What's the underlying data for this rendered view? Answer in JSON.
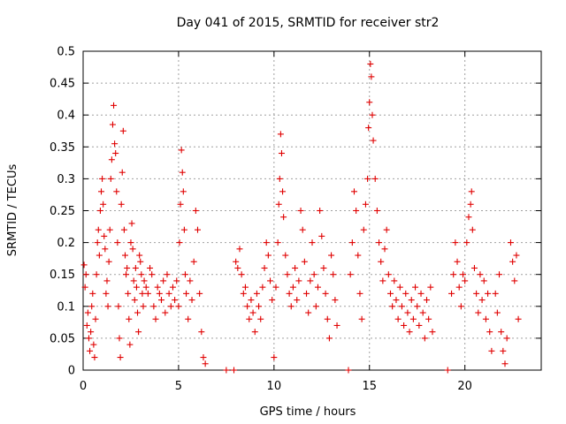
{
  "chart_data": {
    "type": "scatter",
    "title": "Day 041 of 2015, SRMTID for receiver str2",
    "xlabel": "GPS time / hours",
    "ylabel": "SRMTID / TECUs",
    "xlim": [
      0,
      24
    ],
    "ylim": [
      0,
      0.5
    ],
    "xticks": [
      0,
      5,
      10,
      15,
      20
    ],
    "xtick_labels": [
      "0",
      "5",
      "10",
      "15",
      "20"
    ],
    "yticks": [
      0,
      0.05,
      0.1,
      0.15,
      0.2,
      0.25,
      0.3,
      0.35,
      0.4,
      0.45,
      0.5
    ],
    "ytick_labels": [
      "0",
      "0.05",
      "0.1",
      "0.15",
      "0.2",
      "0.25",
      "0.3",
      "0.35",
      "0.4",
      "0.45",
      "0.5"
    ],
    "grid": true,
    "legend": "none",
    "marker": "+",
    "color": "#e00000",
    "series": [
      {
        "values_note": "",
        "points": [
          [
            0.05,
            0.165
          ],
          [
            0.1,
            0.13
          ],
          [
            0.15,
            0.15
          ],
          [
            0.2,
            0.07
          ],
          [
            0.25,
            0.09
          ],
          [
            0.3,
            0.05
          ],
          [
            0.35,
            0.03
          ],
          [
            0.4,
            0.06
          ],
          [
            0.45,
            0.1
          ],
          [
            0.5,
            0.12
          ],
          [
            0.55,
            0.04
          ],
          [
            0.6,
            0.02
          ],
          [
            0.65,
            0.08
          ],
          [
            0.7,
            0.15
          ],
          [
            0.75,
            0.2
          ],
          [
            0.8,
            0.22
          ],
          [
            0.85,
            0.18
          ],
          [
            0.9,
            0.25
          ],
          [
            0.95,
            0.28
          ],
          [
            1.0,
            0.3
          ],
          [
            1.05,
            0.26
          ],
          [
            1.1,
            0.21
          ],
          [
            1.15,
            0.19
          ],
          [
            1.2,
            0.12
          ],
          [
            1.25,
            0.14
          ],
          [
            1.3,
            0.1
          ],
          [
            1.35,
            0.17
          ],
          [
            1.4,
            0.22
          ],
          [
            1.45,
            0.3
          ],
          [
            1.5,
            0.33
          ],
          [
            1.55,
            0.385
          ],
          [
            1.6,
            0.415
          ],
          [
            1.65,
            0.355
          ],
          [
            1.7,
            0.34
          ],
          [
            1.75,
            0.28
          ],
          [
            1.8,
            0.2
          ],
          [
            1.85,
            0.1
          ],
          [
            1.9,
            0.05
          ],
          [
            1.95,
            0.02
          ],
          [
            2.0,
            0.26
          ],
          [
            2.05,
            0.31
          ],
          [
            2.1,
            0.375
          ],
          [
            2.15,
            0.22
          ],
          [
            2.2,
            0.18
          ],
          [
            2.25,
            0.15
          ],
          [
            2.3,
            0.16
          ],
          [
            2.35,
            0.12
          ],
          [
            2.4,
            0.08
          ],
          [
            2.45,
            0.04
          ],
          [
            2.5,
            0.2
          ],
          [
            2.55,
            0.23
          ],
          [
            2.6,
            0.19
          ],
          [
            2.65,
            0.14
          ],
          [
            2.7,
            0.11
          ],
          [
            2.75,
            0.16
          ],
          [
            2.8,
            0.13
          ],
          [
            2.85,
            0.09
          ],
          [
            2.9,
            0.06
          ],
          [
            2.95,
            0.18
          ],
          [
            3.0,
            0.17
          ],
          [
            3.05,
            0.15
          ],
          [
            3.1,
            0.12
          ],
          [
            3.15,
            0.1
          ],
          [
            3.2,
            0.14
          ],
          [
            3.3,
            0.13
          ],
          [
            3.4,
            0.12
          ],
          [
            3.5,
            0.16
          ],
          [
            3.6,
            0.15
          ],
          [
            3.7,
            0.1
          ],
          [
            3.8,
            0.08
          ],
          [
            3.9,
            0.13
          ],
          [
            4.0,
            0.12
          ],
          [
            4.1,
            0.11
          ],
          [
            4.2,
            0.14
          ],
          [
            4.3,
            0.09
          ],
          [
            4.4,
            0.15
          ],
          [
            4.5,
            0.12
          ],
          [
            4.6,
            0.1
          ],
          [
            4.7,
            0.13
          ],
          [
            4.8,
            0.11
          ],
          [
            4.9,
            0.14
          ],
          [
            5.0,
            0.1
          ],
          [
            5.05,
            0.2
          ],
          [
            5.1,
            0.26
          ],
          [
            5.15,
            0.345
          ],
          [
            5.2,
            0.31
          ],
          [
            5.25,
            0.28
          ],
          [
            5.3,
            0.22
          ],
          [
            5.35,
            0.15
          ],
          [
            5.4,
            0.12
          ],
          [
            5.5,
            0.08
          ],
          [
            5.6,
            0.14
          ],
          [
            5.7,
            0.11
          ],
          [
            5.8,
            0.17
          ],
          [
            5.9,
            0.25
          ],
          [
            6.0,
            0.22
          ],
          [
            6.1,
            0.12
          ],
          [
            6.2,
            0.06
          ],
          [
            6.3,
            0.02
          ],
          [
            6.4,
            0.01
          ],
          [
            7.5,
            0.0
          ],
          [
            7.9,
            0.0
          ],
          [
            8.0,
            0.17
          ],
          [
            8.1,
            0.16
          ],
          [
            8.2,
            0.19
          ],
          [
            8.3,
            0.15
          ],
          [
            8.4,
            0.12
          ],
          [
            8.5,
            0.13
          ],
          [
            8.6,
            0.1
          ],
          [
            8.7,
            0.08
          ],
          [
            8.8,
            0.11
          ],
          [
            8.9,
            0.09
          ],
          [
            9.0,
            0.06
          ],
          [
            9.1,
            0.12
          ],
          [
            9.2,
            0.1
          ],
          [
            9.3,
            0.08
          ],
          [
            9.4,
            0.13
          ],
          [
            9.5,
            0.16
          ],
          [
            9.6,
            0.2
          ],
          [
            9.7,
            0.18
          ],
          [
            9.8,
            0.14
          ],
          [
            9.9,
            0.11
          ],
          [
            10.0,
            0.02
          ],
          [
            10.1,
            0.13
          ],
          [
            10.2,
            0.2
          ],
          [
            10.25,
            0.26
          ],
          [
            10.3,
            0.3
          ],
          [
            10.35,
            0.37
          ],
          [
            10.4,
            0.34
          ],
          [
            10.45,
            0.28
          ],
          [
            10.5,
            0.24
          ],
          [
            10.6,
            0.18
          ],
          [
            10.7,
            0.15
          ],
          [
            10.8,
            0.12
          ],
          [
            10.9,
            0.1
          ],
          [
            11.0,
            0.13
          ],
          [
            11.1,
            0.16
          ],
          [
            11.2,
            0.11
          ],
          [
            11.3,
            0.14
          ],
          [
            11.4,
            0.25
          ],
          [
            11.5,
            0.22
          ],
          [
            11.6,
            0.17
          ],
          [
            11.7,
            0.12
          ],
          [
            11.8,
            0.09
          ],
          [
            11.9,
            0.14
          ],
          [
            12.0,
            0.2
          ],
          [
            12.1,
            0.15
          ],
          [
            12.2,
            0.1
          ],
          [
            12.3,
            0.13
          ],
          [
            12.4,
            0.25
          ],
          [
            12.5,
            0.21
          ],
          [
            12.6,
            0.16
          ],
          [
            12.7,
            0.12
          ],
          [
            12.8,
            0.08
          ],
          [
            12.9,
            0.05
          ],
          [
            13.0,
            0.18
          ],
          [
            13.1,
            0.15
          ],
          [
            13.2,
            0.11
          ],
          [
            13.3,
            0.07
          ],
          [
            13.9,
            0.0
          ],
          [
            14.0,
            0.15
          ],
          [
            14.1,
            0.2
          ],
          [
            14.2,
            0.28
          ],
          [
            14.3,
            0.25
          ],
          [
            14.4,
            0.18
          ],
          [
            14.5,
            0.12
          ],
          [
            14.6,
            0.08
          ],
          [
            14.7,
            0.22
          ],
          [
            14.8,
            0.26
          ],
          [
            14.9,
            0.3
          ],
          [
            14.95,
            0.38
          ],
          [
            15.0,
            0.42
          ],
          [
            15.05,
            0.48
          ],
          [
            15.1,
            0.46
          ],
          [
            15.15,
            0.4
          ],
          [
            15.2,
            0.36
          ],
          [
            15.3,
            0.3
          ],
          [
            15.4,
            0.25
          ],
          [
            15.5,
            0.2
          ],
          [
            15.6,
            0.17
          ],
          [
            15.7,
            0.14
          ],
          [
            15.8,
            0.19
          ],
          [
            15.9,
            0.22
          ],
          [
            16.0,
            0.15
          ],
          [
            16.1,
            0.12
          ],
          [
            16.2,
            0.1
          ],
          [
            16.3,
            0.14
          ],
          [
            16.4,
            0.11
          ],
          [
            16.5,
            0.08
          ],
          [
            16.6,
            0.13
          ],
          [
            16.7,
            0.1
          ],
          [
            16.8,
            0.07
          ],
          [
            16.9,
            0.12
          ],
          [
            17.0,
            0.09
          ],
          [
            17.1,
            0.06
          ],
          [
            17.2,
            0.11
          ],
          [
            17.3,
            0.08
          ],
          [
            17.4,
            0.13
          ],
          [
            17.5,
            0.1
          ],
          [
            17.6,
            0.07
          ],
          [
            17.7,
            0.12
          ],
          [
            17.8,
            0.09
          ],
          [
            17.9,
            0.05
          ],
          [
            18.0,
            0.11
          ],
          [
            18.1,
            0.08
          ],
          [
            18.2,
            0.13
          ],
          [
            18.3,
            0.06
          ],
          [
            19.1,
            0.0
          ],
          [
            19.3,
            0.12
          ],
          [
            19.4,
            0.15
          ],
          [
            19.5,
            0.2
          ],
          [
            19.6,
            0.17
          ],
          [
            19.7,
            0.13
          ],
          [
            19.8,
            0.1
          ],
          [
            19.9,
            0.15
          ],
          [
            20.0,
            0.14
          ],
          [
            20.1,
            0.2
          ],
          [
            20.2,
            0.24
          ],
          [
            20.3,
            0.26
          ],
          [
            20.35,
            0.28
          ],
          [
            20.4,
            0.22
          ],
          [
            20.5,
            0.16
          ],
          [
            20.6,
            0.12
          ],
          [
            20.7,
            0.09
          ],
          [
            20.8,
            0.15
          ],
          [
            20.9,
            0.11
          ],
          [
            21.0,
            0.14
          ],
          [
            21.1,
            0.08
          ],
          [
            21.2,
            0.12
          ],
          [
            21.3,
            0.06
          ],
          [
            21.4,
            0.03
          ],
          [
            21.6,
            0.12
          ],
          [
            21.7,
            0.09
          ],
          [
            21.8,
            0.15
          ],
          [
            21.9,
            0.06
          ],
          [
            22.0,
            0.03
          ],
          [
            22.1,
            0.01
          ],
          [
            22.2,
            0.05
          ],
          [
            22.4,
            0.2
          ],
          [
            22.5,
            0.17
          ],
          [
            22.6,
            0.14
          ],
          [
            22.7,
            0.18
          ],
          [
            22.8,
            0.08
          ]
        ]
      }
    ]
  }
}
